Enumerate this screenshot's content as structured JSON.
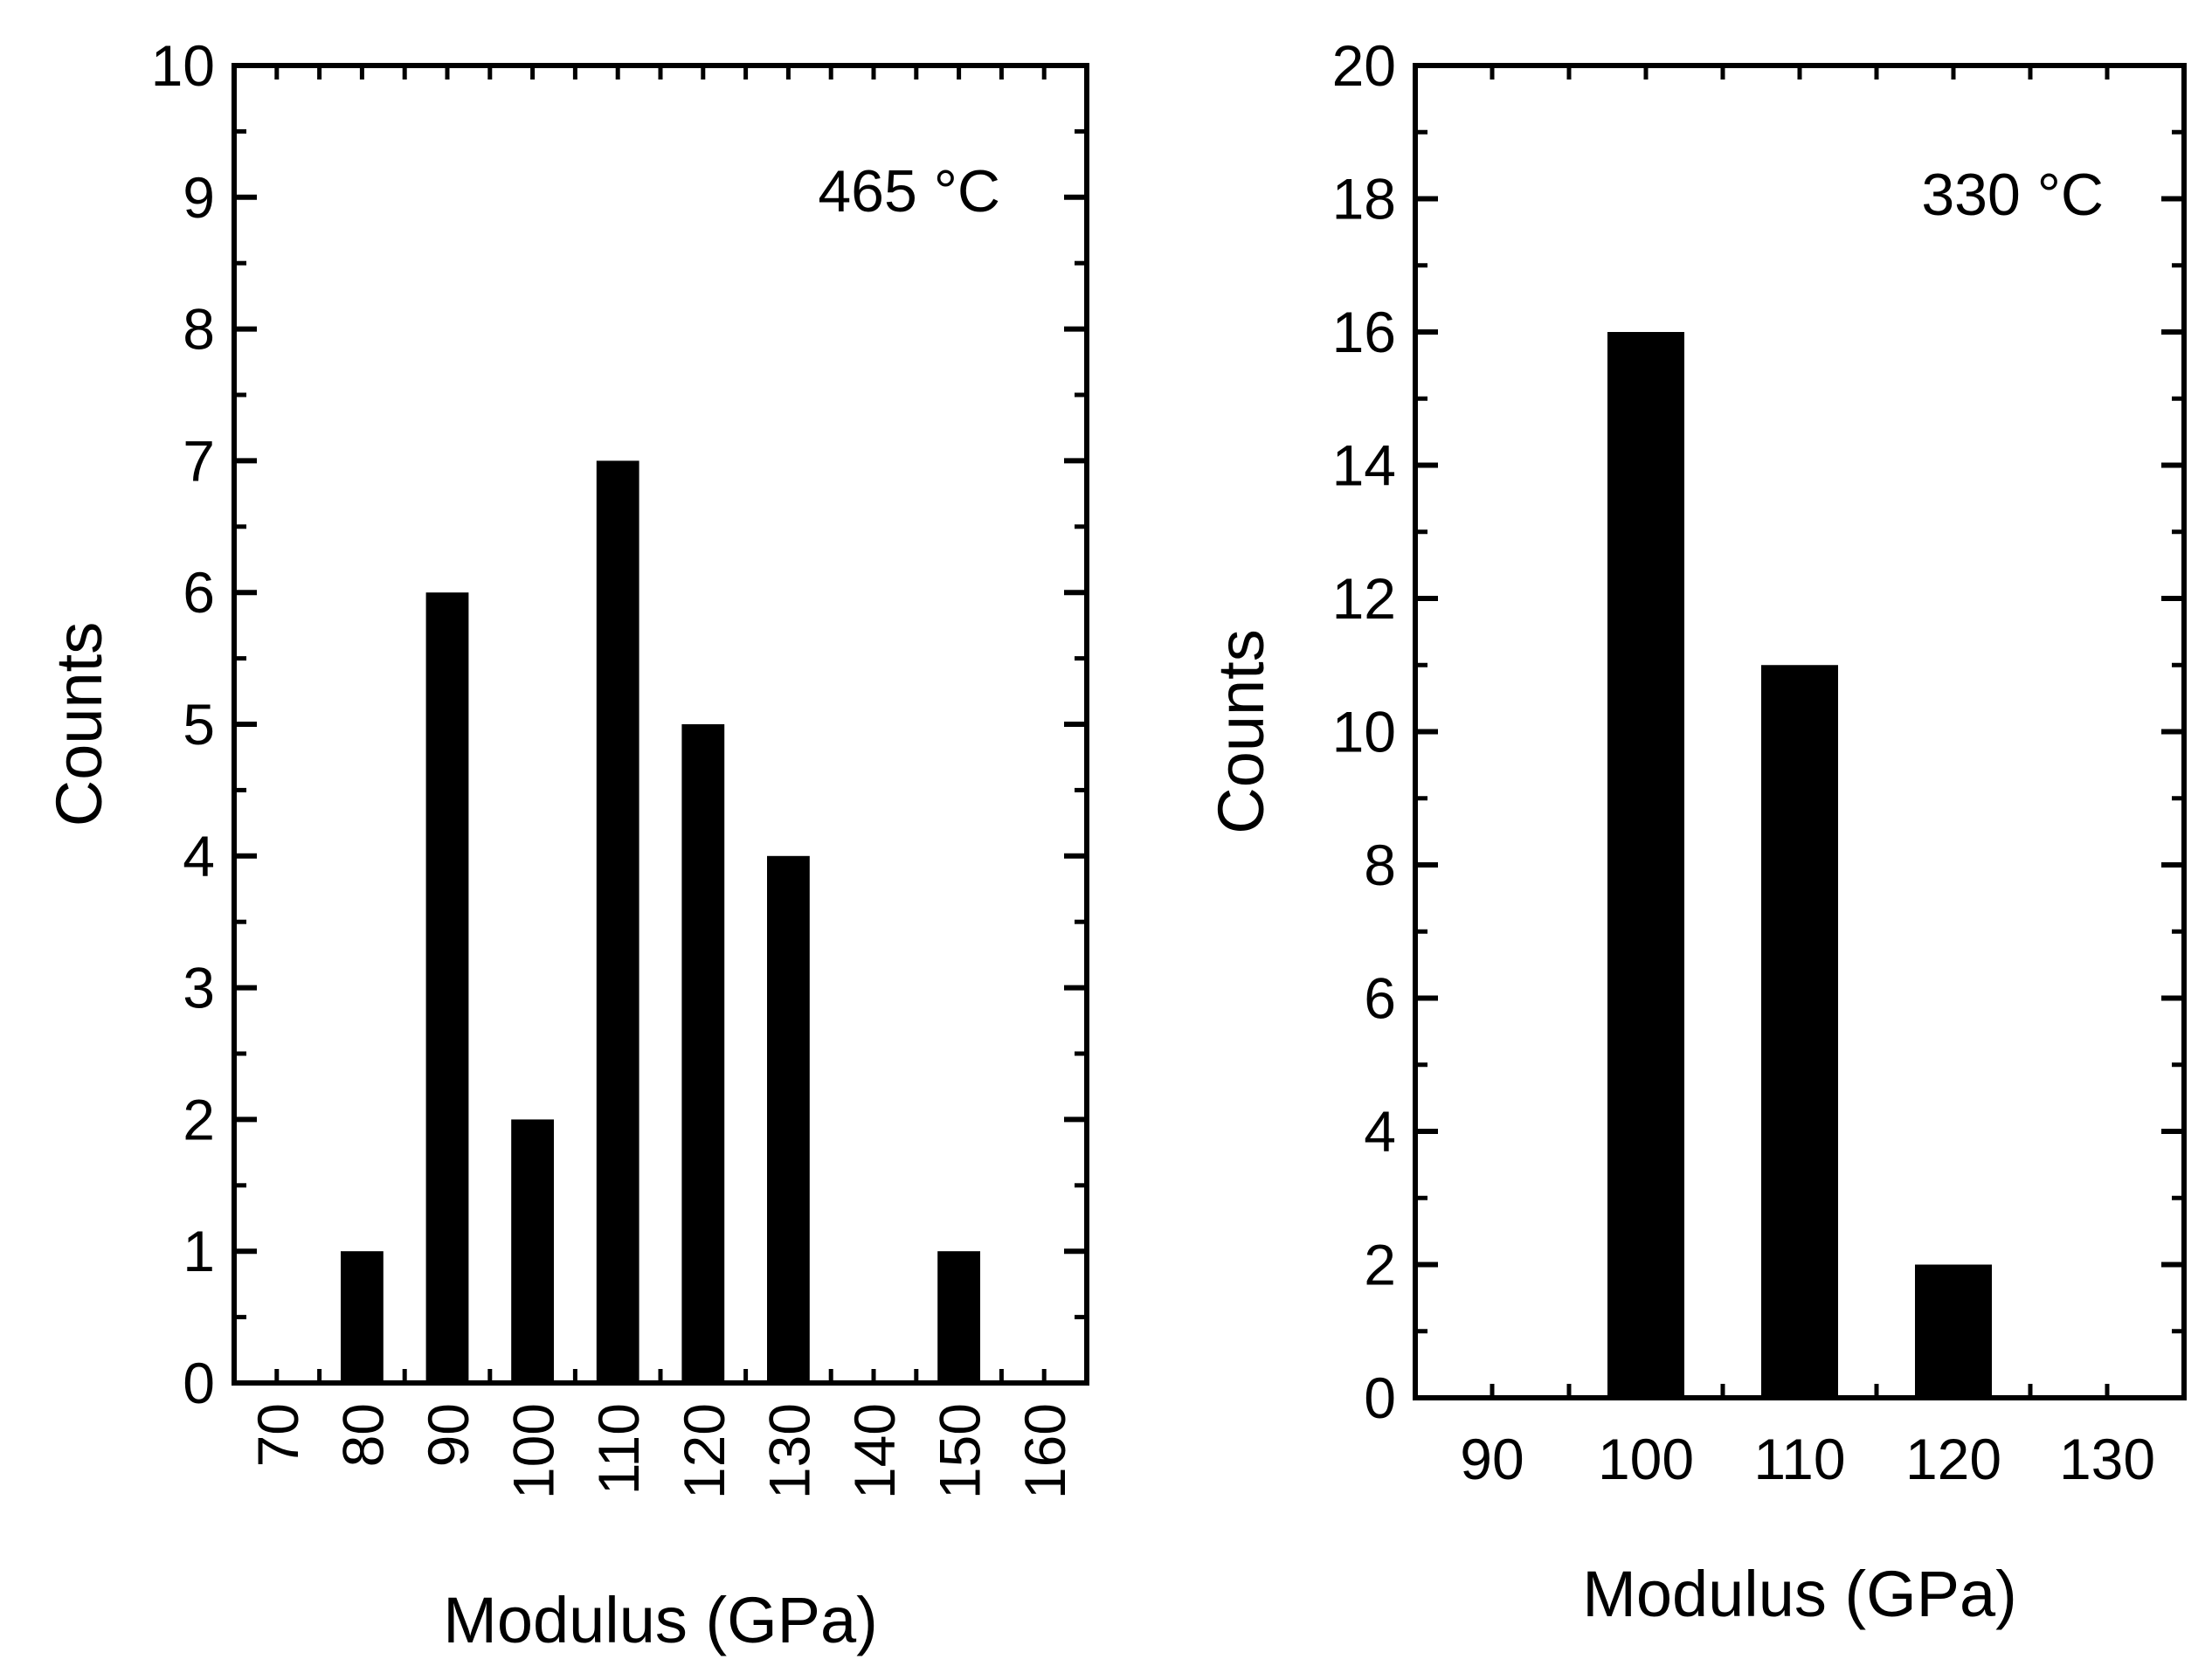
{
  "chart_data": [
    {
      "type": "bar",
      "annotation": "465 °C",
      "xlabel": "Modulus (GPa)",
      "ylabel": "Counts",
      "categories": [
        "70",
        "80",
        "90",
        "100",
        "110",
        "120",
        "130",
        "140",
        "150",
        "160"
      ],
      "values": [
        0,
        1,
        6,
        2,
        7,
        5,
        4,
        0,
        1,
        0
      ],
      "yticks": [
        "0",
        "1",
        "2",
        "3",
        "4",
        "5",
        "6",
        "7",
        "8",
        "9",
        "10"
      ],
      "ylim": [
        0,
        10
      ],
      "xtick_rotation": "vertical"
    },
    {
      "type": "bar",
      "annotation": "330 °C",
      "xlabel": "Modulus (GPa)",
      "ylabel": "Counts",
      "categories": [
        "90",
        "100",
        "110",
        "120",
        "130"
      ],
      "values": [
        0,
        16,
        11,
        2,
        0
      ],
      "yticks": [
        "0",
        "2",
        "4",
        "6",
        "8",
        "10",
        "12",
        "14",
        "16",
        "18",
        "20"
      ],
      "ylim": [
        0,
        20
      ],
      "xtick_rotation": "horizontal"
    }
  ]
}
